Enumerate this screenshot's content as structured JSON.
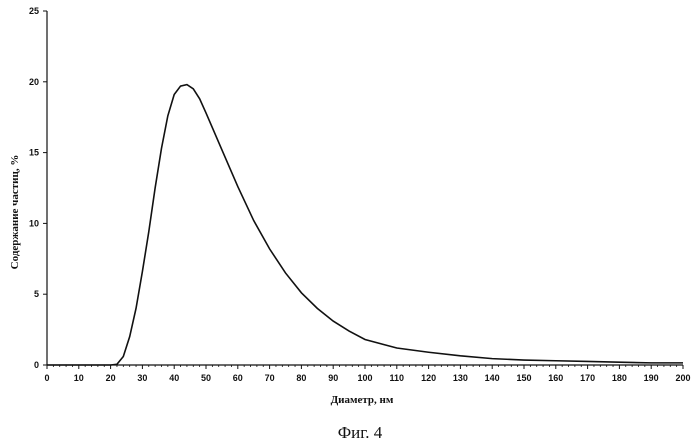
{
  "chart_data": {
    "type": "line",
    "xlabel": "Диаметр, нм",
    "ylabel": "Содержание частиц, %",
    "xlim": [
      0,
      200
    ],
    "ylim": [
      0,
      25
    ],
    "x_ticks": [
      0,
      10,
      20,
      30,
      40,
      50,
      60,
      70,
      80,
      90,
      100,
      110,
      120,
      130,
      140,
      150,
      160,
      170,
      180,
      190,
      200
    ],
    "y_ticks": [
      0,
      5,
      10,
      15,
      20,
      25
    ],
    "grid": false,
    "legend": "none",
    "series": [
      {
        "x": [
          0,
          20,
          22,
          24,
          26,
          28,
          30,
          32,
          34,
          36,
          38,
          40,
          42,
          44,
          46,
          48,
          50,
          55,
          60,
          65,
          70,
          75,
          80,
          85,
          90,
          95,
          100,
          110,
          120,
          130,
          140,
          150,
          160,
          170,
          180,
          190,
          200
        ],
        "y": [
          0,
          0,
          0.05,
          0.6,
          2.0,
          4.0,
          6.6,
          9.4,
          12.5,
          15.3,
          17.6,
          19.1,
          19.7,
          19.8,
          19.5,
          18.8,
          17.8,
          15.2,
          12.6,
          10.2,
          8.2,
          6.5,
          5.1,
          4.0,
          3.1,
          2.4,
          1.8,
          1.2,
          0.9,
          0.65,
          0.45,
          0.35,
          0.3,
          0.25,
          0.2,
          0.15,
          0.15
        ]
      }
    ]
  },
  "figure": {
    "caption": "Фиг. 4"
  },
  "colors": {
    "line": "#111111",
    "background": "#ffffff"
  }
}
